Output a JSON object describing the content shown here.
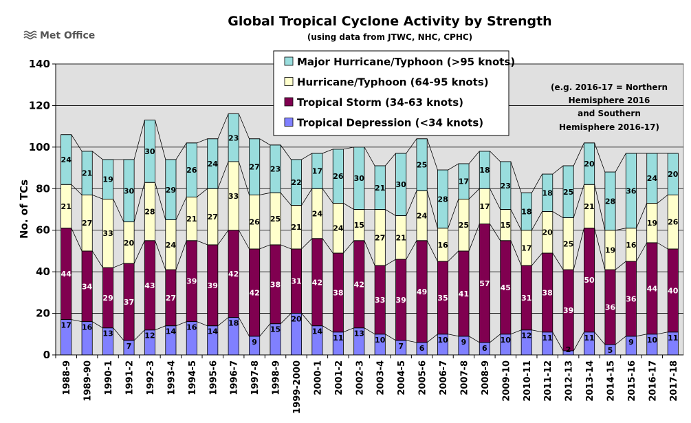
{
  "brand": {
    "logo_text": "Met Office"
  },
  "chart_data": {
    "type": "bar",
    "stacked": true,
    "title": "Global Tropical Cyclone Activity by Strength",
    "subtitle": "(using data from JTWC, NHC, CPHC)",
    "ylabel": "No. of TCs",
    "xlabel": "",
    "ylim": [
      0,
      140
    ],
    "yticks": [
      0,
      20,
      40,
      60,
      80,
      100,
      120,
      140
    ],
    "grid": true,
    "legend_position": "top-center",
    "note_lines": [
      "(e.g. 2016-17 = Northern",
      "Hemisphere 2016",
      "and Southern",
      "Hemisphere 2016-17)"
    ],
    "categories": [
      "1988-9",
      "1989-90",
      "1990-1",
      "1991-2",
      "1992-3",
      "1993-4",
      "1994-5",
      "1995-6",
      "1996-7",
      "1997-8",
      "1998-9",
      "1999-2000",
      "2000-1",
      "2001-2",
      "2002-3",
      "2003-4",
      "2004-5",
      "2005-6",
      "2006-7",
      "2007-8",
      "2008-9",
      "2009-10",
      "2010-11",
      "2011-12",
      "2012-13",
      "2013-14",
      "2014-15",
      "2015-16",
      "2016-17",
      "2017-18"
    ],
    "series": [
      {
        "name": "Tropical Depression (<34 knots)",
        "color": "#8080ff",
        "values": [
          17,
          16,
          13,
          7,
          12,
          14,
          16,
          14,
          18,
          9,
          15,
          20,
          14,
          11,
          13,
          10,
          7,
          6,
          10,
          9,
          6,
          10,
          12,
          11,
          2,
          11,
          5,
          9,
          10,
          11
        ]
      },
      {
        "name": "Tropical Storm (34-63 knots)",
        "color": "#800050",
        "values": [
          44,
          34,
          29,
          37,
          43,
          27,
          39,
          39,
          42,
          42,
          38,
          31,
          42,
          38,
          42,
          33,
          39,
          49,
          35,
          41,
          57,
          45,
          31,
          38,
          39,
          50,
          36,
          36,
          44,
          40
        ]
      },
      {
        "name": "Hurricane/Typhoon (64-95 knots)",
        "color": "#ffffcc",
        "values": [
          21,
          27,
          33,
          20,
          28,
          24,
          21,
          27,
          33,
          26,
          25,
          21,
          24,
          24,
          15,
          27,
          21,
          24,
          16,
          25,
          17,
          15,
          17,
          20,
          25,
          21,
          19,
          16,
          19,
          26
        ]
      },
      {
        "name": "Major Hurricane/Typhoon (>95 knots)",
        "color": "#99dddd",
        "values": [
          24,
          21,
          19,
          30,
          30,
          29,
          26,
          24,
          23,
          27,
          23,
          22,
          17,
          26,
          30,
          21,
          30,
          25,
          28,
          17,
          18,
          23,
          18,
          18,
          25,
          20,
          28,
          36,
          24,
          20
        ]
      }
    ]
  }
}
